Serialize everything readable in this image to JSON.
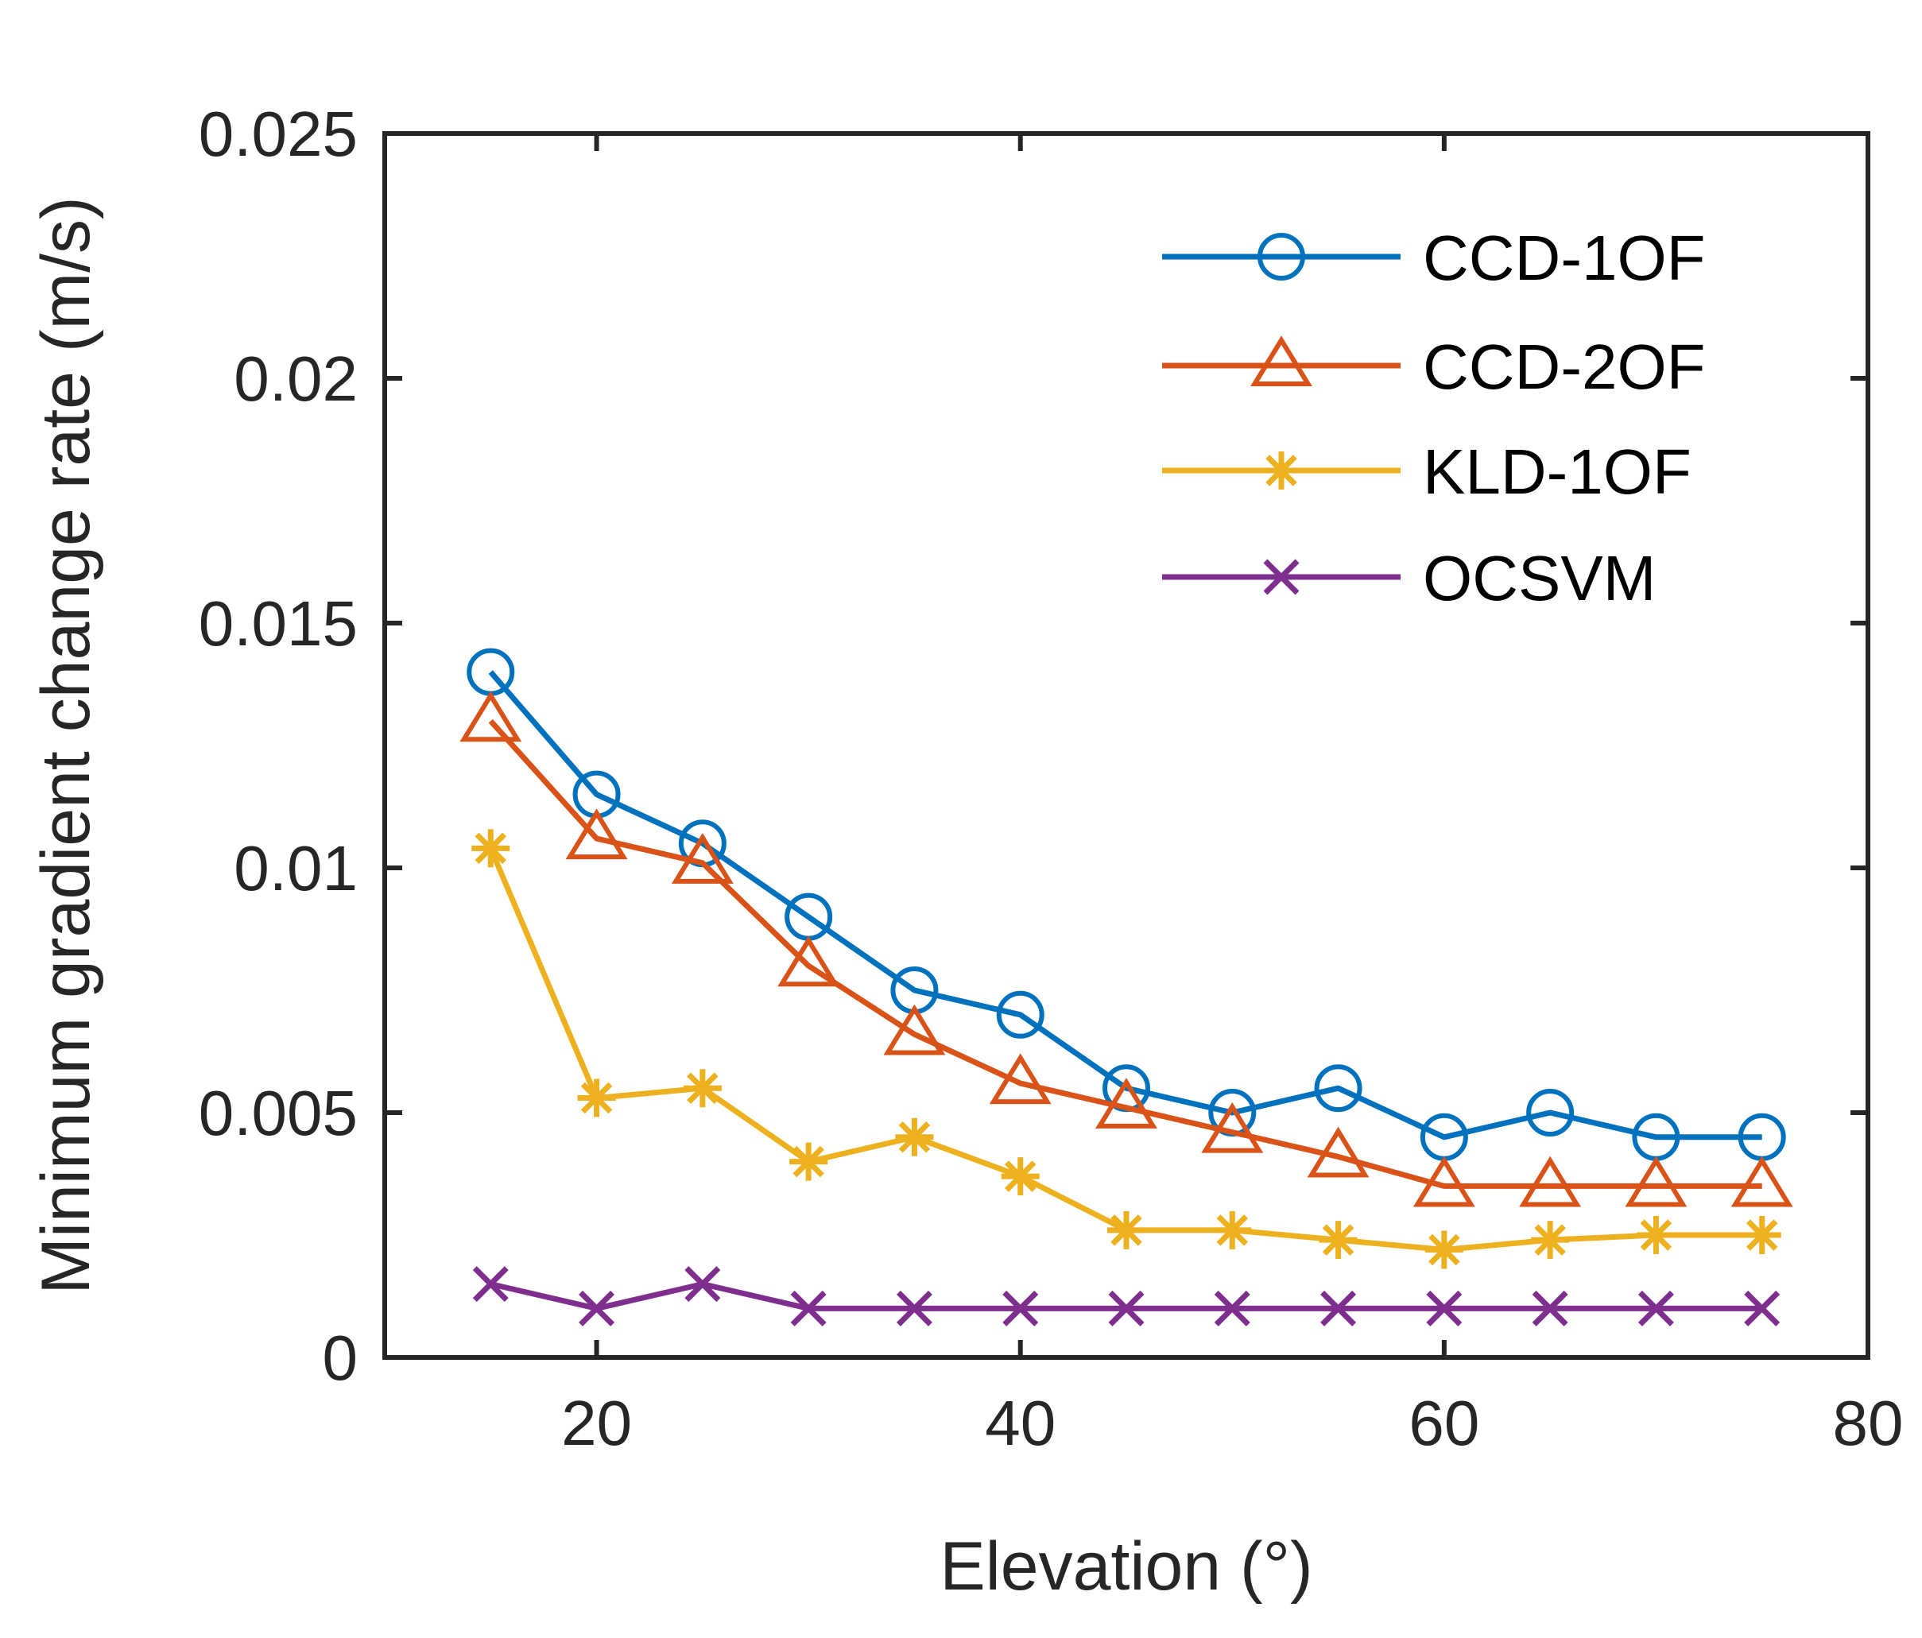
{
  "chart_data": {
    "type": "line",
    "title": "",
    "xlabel": "Elevation (°)",
    "ylabel": "Minimum gradient change rate  (m/s)",
    "xlim": [
      10,
      80
    ],
    "ylim": [
      0,
      0.025
    ],
    "xticks": [
      20,
      40,
      60,
      80
    ],
    "yticks": [
      0,
      0.005,
      0.01,
      0.015,
      0.02,
      0.025
    ],
    "xtick_labels": [
      "20",
      "40",
      "60",
      "80"
    ],
    "ytick_labels": [
      "0",
      "0.005",
      "0.01",
      "0.015",
      "0.02",
      "0.025"
    ],
    "grid": false,
    "legend_position": "top-right",
    "x": [
      15,
      20,
      25,
      30,
      35,
      40,
      45,
      50,
      55,
      60,
      65,
      70,
      75
    ],
    "series": [
      {
        "name": "CCD-1OF",
        "color": "#0072BD",
        "marker": "circle",
        "values": [
          0.014,
          0.0115,
          0.0105,
          0.009,
          0.0075,
          0.007,
          0.0055,
          0.005,
          0.0055,
          0.0045,
          0.005,
          0.0045,
          0.0045
        ]
      },
      {
        "name": "CCD-2OF",
        "color": "#D95319",
        "marker": "triangle",
        "values": [
          0.013,
          0.0106,
          0.0101,
          0.008,
          0.0066,
          0.0056,
          0.0051,
          0.0046,
          0.0041,
          0.0035,
          0.0035,
          0.0035,
          0.0035
        ]
      },
      {
        "name": "KLD-1OF",
        "color": "#EDB120",
        "marker": "asterisk",
        "values": [
          0.0104,
          0.0053,
          0.0055,
          0.004,
          0.0045,
          0.0037,
          0.0026,
          0.0026,
          0.0024,
          0.0022,
          0.0024,
          0.0025,
          0.0025
        ]
      },
      {
        "name": "OCSVM",
        "color": "#7E2F8E",
        "marker": "x",
        "values": [
          0.0015,
          0.001,
          0.0015,
          0.001,
          0.001,
          0.001,
          0.001,
          0.001,
          0.001,
          0.001,
          0.001,
          0.001,
          0.001
        ]
      }
    ]
  }
}
